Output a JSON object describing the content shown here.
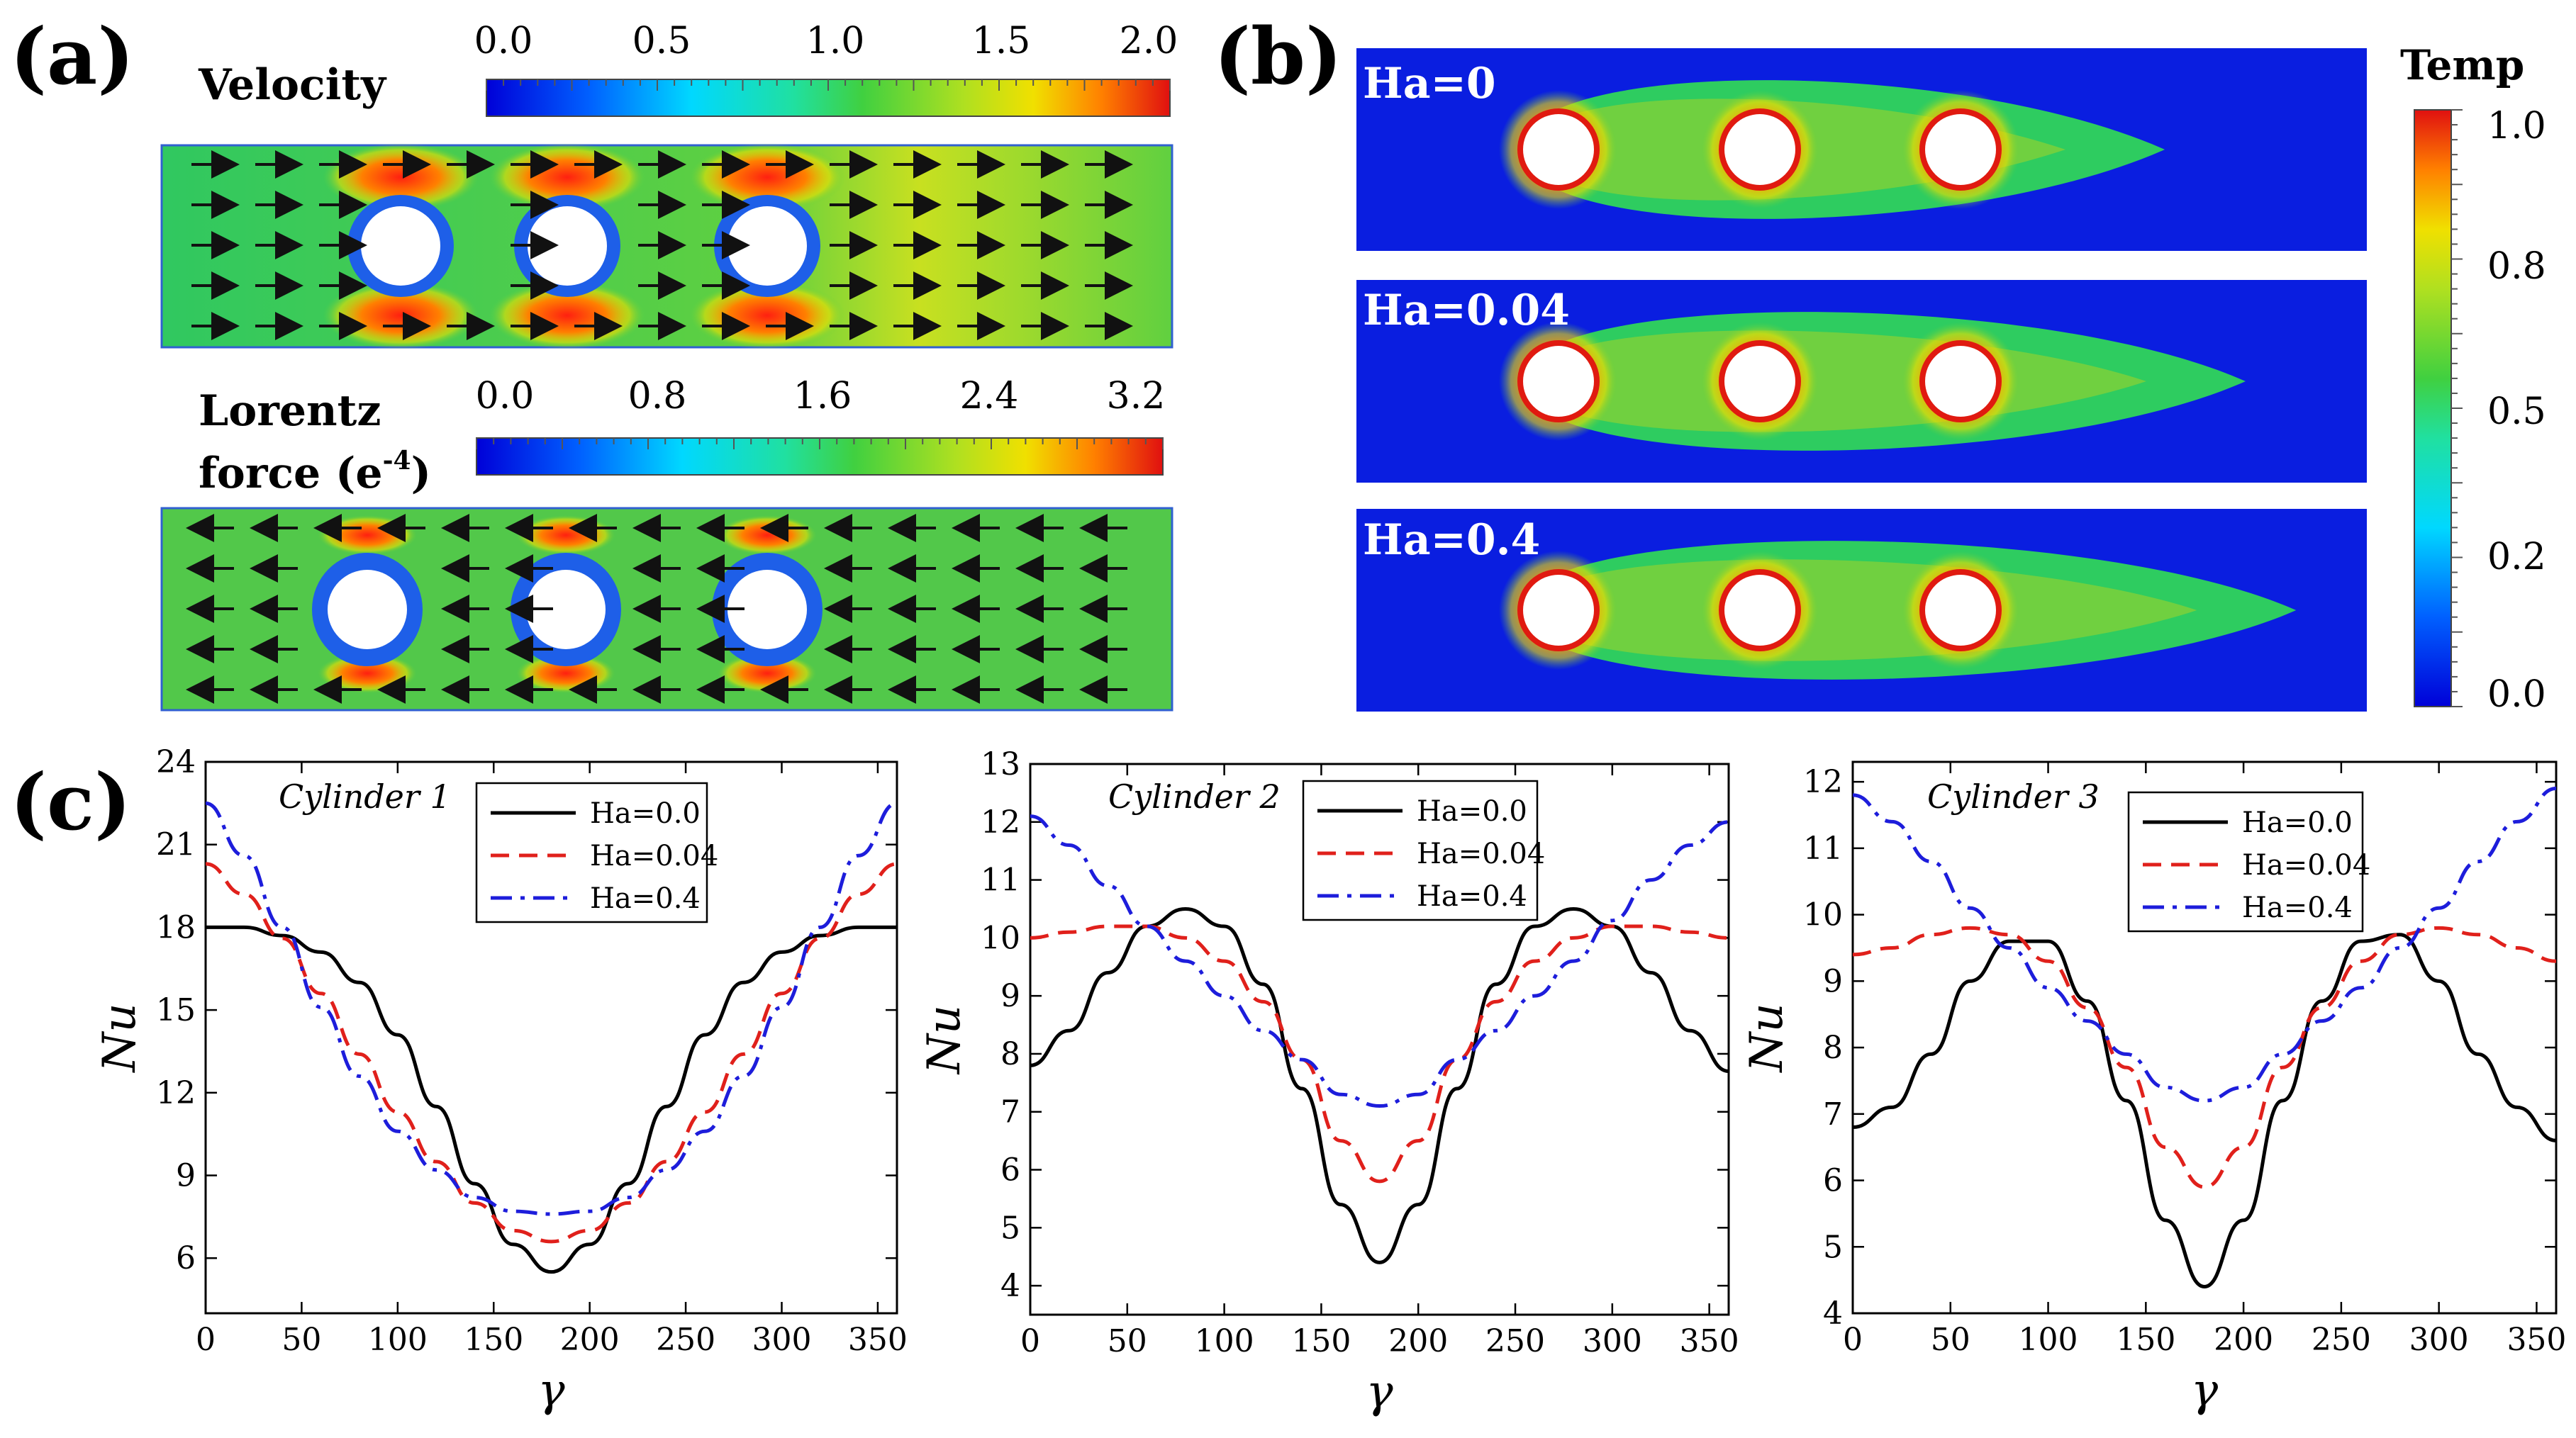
{
  "panels": {
    "a": {
      "label": "(a)",
      "velocity": {
        "title": "Velocity",
        "ticks": [
          "0.0",
          "0.5",
          "1.0",
          "1.5",
          "2.0"
        ]
      },
      "lorentz": {
        "title_line1": "Lorentz",
        "title_line2": "force (e",
        "title_sup": "-4",
        "title_end": ")",
        "ticks": [
          "0.0",
          "0.8",
          "1.6",
          "2.4",
          "3.2"
        ]
      }
    },
    "b": {
      "label": "(b)",
      "colorbar_title": "Temp",
      "ticks": [
        "1.0",
        "0.8",
        "0.5",
        "0.2",
        "0.0"
      ],
      "fields": [
        "Ha=0",
        "Ha=0.04",
        "Ha=0.4"
      ]
    },
    "c": {
      "label": "(c)"
    }
  },
  "colors": {
    "Ha=0.0": "#000000",
    "Ha=0.04": "#e0201b",
    "Ha=0.4": "#1d1ddb"
  },
  "chart_data": [
    {
      "type": "line",
      "annotation": "Cylinder 1",
      "xlabel": "γ",
      "ylabel": "Nu",
      "xlim": [
        0,
        360
      ],
      "ylim": [
        4,
        24
      ],
      "xticks": [
        0,
        50,
        100,
        150,
        200,
        250,
        300,
        350
      ],
      "yticks": [
        6,
        9,
        12,
        15,
        18,
        21,
        24
      ],
      "legend": "top-right",
      "series": [
        {
          "name": "Ha=0.0",
          "style": "solid",
          "x": [
            0,
            20,
            40,
            60,
            80,
            100,
            120,
            140,
            160,
            180,
            200,
            220,
            240,
            260,
            280,
            300,
            320,
            340,
            360
          ],
          "y": [
            18.0,
            18.0,
            17.7,
            17.1,
            16.0,
            14.1,
            11.5,
            8.7,
            6.5,
            5.5,
            6.5,
            8.7,
            11.5,
            14.1,
            16.0,
            17.1,
            17.7,
            18.0,
            18.0
          ]
        },
        {
          "name": "Ha=0.04",
          "style": "dashed",
          "x": [
            0,
            20,
            40,
            60,
            80,
            100,
            120,
            140,
            160,
            180,
            200,
            220,
            240,
            260,
            280,
            300,
            320,
            340,
            360
          ],
          "y": [
            20.3,
            19.2,
            17.6,
            15.6,
            13.4,
            11.3,
            9.5,
            8.0,
            7.0,
            6.6,
            7.0,
            8.0,
            9.5,
            11.3,
            13.4,
            15.6,
            17.6,
            19.2,
            20.3
          ]
        },
        {
          "name": "Ha=0.4",
          "style": "dashdot",
          "x": [
            0,
            20,
            40,
            60,
            80,
            100,
            120,
            140,
            160,
            180,
            200,
            220,
            240,
            260,
            280,
            300,
            320,
            340,
            360
          ],
          "y": [
            22.5,
            20.6,
            18.0,
            15.1,
            12.6,
            10.6,
            9.2,
            8.2,
            7.7,
            7.6,
            7.7,
            8.2,
            9.2,
            10.6,
            12.6,
            15.1,
            18.0,
            20.6,
            22.5
          ]
        }
      ]
    },
    {
      "type": "line",
      "annotation": "Cylinder 2",
      "xlabel": "γ",
      "ylabel": "Nu",
      "xlim": [
        0,
        360
      ],
      "ylim": [
        3.5,
        13
      ],
      "xticks": [
        0,
        50,
        100,
        150,
        200,
        250,
        300,
        350
      ],
      "yticks": [
        4,
        5,
        6,
        7,
        8,
        9,
        10,
        11,
        12,
        13
      ],
      "legend": "top-right",
      "series": [
        {
          "name": "Ha=0.0",
          "style": "solid",
          "x": [
            0,
            20,
            40,
            60,
            80,
            100,
            120,
            140,
            160,
            180,
            200,
            220,
            240,
            260,
            280,
            300,
            320,
            340,
            360
          ],
          "y": [
            7.8,
            8.4,
            9.4,
            10.2,
            10.5,
            10.2,
            9.2,
            7.4,
            5.4,
            4.4,
            5.4,
            7.4,
            9.2,
            10.2,
            10.5,
            10.2,
            9.4,
            8.4,
            7.7
          ]
        },
        {
          "name": "Ha=0.04",
          "style": "dashed",
          "x": [
            0,
            20,
            40,
            60,
            80,
            100,
            120,
            140,
            160,
            180,
            200,
            220,
            240,
            260,
            280,
            300,
            320,
            340,
            360
          ],
          "y": [
            10.0,
            10.1,
            10.2,
            10.2,
            10.0,
            9.6,
            8.9,
            7.9,
            6.5,
            5.8,
            6.5,
            7.9,
            8.9,
            9.6,
            10.0,
            10.2,
            10.2,
            10.1,
            10.0
          ]
        },
        {
          "name": "Ha=0.4",
          "style": "dashdot",
          "x": [
            0,
            20,
            40,
            60,
            80,
            100,
            120,
            140,
            160,
            180,
            200,
            220,
            240,
            260,
            280,
            300,
            320,
            340,
            360
          ],
          "y": [
            12.1,
            11.6,
            10.9,
            10.2,
            9.6,
            9.0,
            8.4,
            7.9,
            7.3,
            7.1,
            7.3,
            7.9,
            8.4,
            9.0,
            9.6,
            10.3,
            11.0,
            11.6,
            12.0
          ]
        }
      ]
    },
    {
      "type": "line",
      "annotation": "Cylinder 3",
      "xlabel": "γ",
      "ylabel": "Nu",
      "xlim": [
        0,
        360
      ],
      "ylim": [
        4,
        12.3
      ],
      "xticks": [
        0,
        50,
        100,
        150,
        200,
        250,
        300,
        350
      ],
      "yticks": [
        4,
        5,
        6,
        7,
        8,
        9,
        10,
        11,
        12
      ],
      "legend": "top-right",
      "series": [
        {
          "name": "Ha=0.0",
          "style": "solid",
          "x": [
            0,
            20,
            40,
            60,
            80,
            100,
            120,
            140,
            160,
            180,
            200,
            220,
            240,
            260,
            280,
            300,
            320,
            340,
            360
          ],
          "y": [
            6.8,
            7.1,
            7.9,
            9.0,
            9.6,
            9.6,
            8.7,
            7.2,
            5.4,
            4.4,
            5.4,
            7.2,
            8.7,
            9.6,
            9.7,
            9.0,
            7.9,
            7.1,
            6.6
          ]
        },
        {
          "name": "Ha=0.04",
          "style": "dashed",
          "x": [
            0,
            20,
            40,
            60,
            80,
            100,
            120,
            140,
            160,
            180,
            200,
            220,
            240,
            260,
            280,
            300,
            320,
            340,
            360
          ],
          "y": [
            9.4,
            9.5,
            9.7,
            9.8,
            9.7,
            9.3,
            8.6,
            7.7,
            6.5,
            5.9,
            6.5,
            7.7,
            8.6,
            9.3,
            9.7,
            9.8,
            9.7,
            9.5,
            9.3
          ]
        },
        {
          "name": "Ha=0.4",
          "style": "dashdot",
          "x": [
            0,
            20,
            40,
            60,
            80,
            100,
            120,
            140,
            160,
            180,
            200,
            220,
            240,
            260,
            280,
            300,
            320,
            340,
            360
          ],
          "y": [
            11.8,
            11.4,
            10.8,
            10.1,
            9.5,
            8.9,
            8.4,
            7.9,
            7.4,
            7.2,
            7.4,
            7.9,
            8.4,
            8.9,
            9.5,
            10.1,
            10.8,
            11.4,
            11.9
          ]
        }
      ]
    }
  ]
}
